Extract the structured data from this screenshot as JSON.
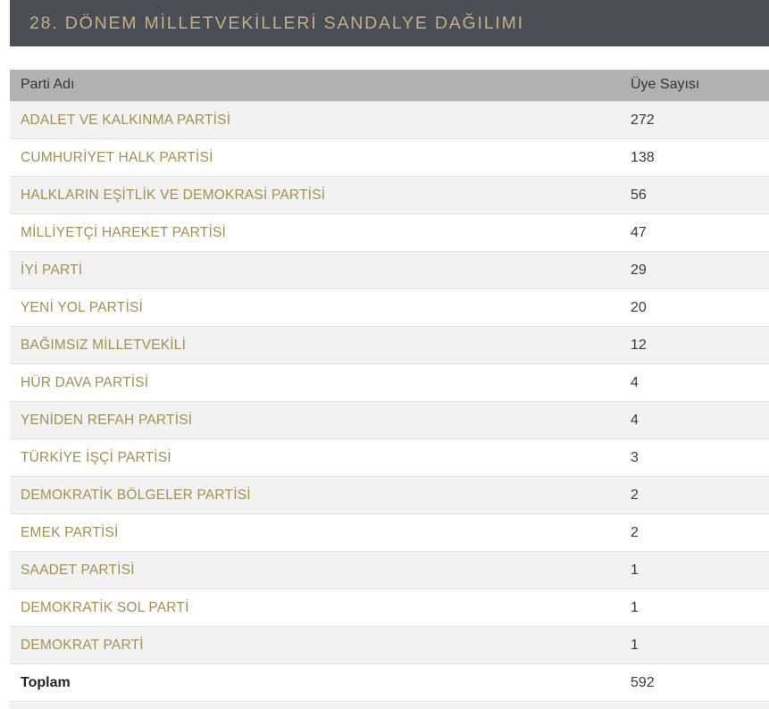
{
  "header": {
    "title": "28. DÖNEM MİLLETVEKİLLERİ SANDALYE DAĞILIMI"
  },
  "table": {
    "columns": [
      "Parti Adı",
      "Üye Sayısı"
    ],
    "rows": [
      {
        "party": "ADALET VE KALKINMA PARTİSİ",
        "seats": "272"
      },
      {
        "party": "CUMHURİYET HALK PARTİSİ",
        "seats": "138"
      },
      {
        "party": "HALKLARIN EŞİTLİK VE DEMOKRASİ PARTİSİ",
        "seats": "56"
      },
      {
        "party": "MİLLİYETÇİ HAREKET PARTİSİ",
        "seats": "47"
      },
      {
        "party": "İYİ PARTİ",
        "seats": "29"
      },
      {
        "party": "YENİ YOL PARTİSİ",
        "seats": "20"
      },
      {
        "party": "BAĞIMSIZ MİLLETVEKİLİ",
        "seats": "12"
      },
      {
        "party": "HÜR DAVA PARTİSİ",
        "seats": "4"
      },
      {
        "party": "YENİDEN REFAH PARTİSİ",
        "seats": "4"
      },
      {
        "party": "TÜRKİYE İŞÇİ PARTİSİ",
        "seats": "3"
      },
      {
        "party": "DEMOKRATİK BÖLGELER PARTİSİ",
        "seats": "2"
      },
      {
        "party": "EMEK PARTİSİ",
        "seats": "2"
      },
      {
        "party": "SAADET PARTİSİ",
        "seats": "1"
      },
      {
        "party": "DEMOKRATİK SOL PARTİ",
        "seats": "1"
      },
      {
        "party": "DEMOKRAT PARTİ",
        "seats": "1"
      }
    ],
    "total": {
      "label": "Toplam",
      "value": "592"
    }
  },
  "colors": {
    "title_bar_bg": "#4a4e57",
    "title_text": "#c9ae80",
    "table_header_bg": "#b1b1b1",
    "party_name_text": "#a3904f",
    "stripe_row_bg": "#f2f2f2",
    "number_text": "#343a40"
  }
}
